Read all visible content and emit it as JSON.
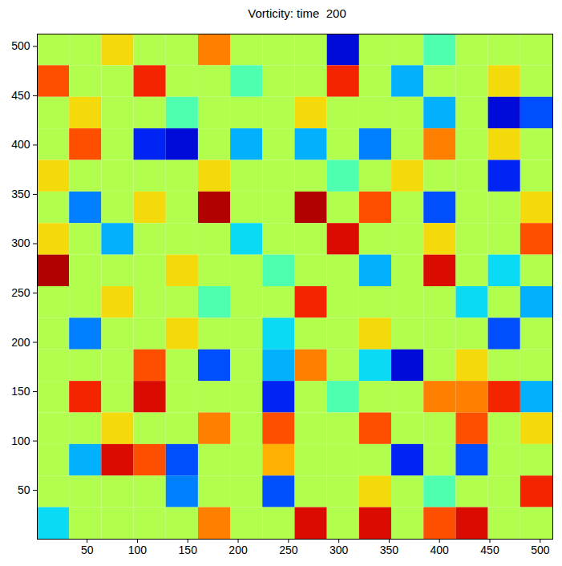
{
  "chart_data": {
    "type": "heatmap",
    "title": "Vorticity: time  200",
    "xlim": [
      0.5,
      512.5
    ],
    "ylim": [
      0.5,
      512.5
    ],
    "xticks": [
      50,
      100,
      150,
      200,
      250,
      300,
      350,
      400,
      450,
      500
    ],
    "yticks": [
      50,
      100,
      150,
      200,
      250,
      300,
      350,
      400,
      450,
      500
    ],
    "x_edges": [
      0.5,
      32.5,
      64.5,
      96.5,
      128.5,
      160.5,
      192.5,
      224.5,
      256.5,
      288.5,
      320.5,
      352.5,
      384.5,
      416.5,
      448.5,
      480.5,
      512.5
    ],
    "y_edges": [
      512.5,
      480.5,
      448.5,
      416.5,
      384.5,
      352.5,
      320.5,
      288.5,
      256.5,
      224.5,
      192.5,
      160.5,
      128.5,
      96.5,
      64.5,
      32.5,
      0.5
    ],
    "color_range": [
      -1,
      1
    ],
    "cells": [
      [
        0.1,
        0.1,
        0.3,
        0.1,
        0.1,
        0.5,
        0.1,
        0.1,
        0.1,
        -0.8,
        0.1,
        0.1,
        -0.1,
        0.1,
        0.1,
        0.1
      ],
      [
        0.6,
        0.1,
        0.1,
        0.7,
        0.1,
        0.1,
        -0.1,
        0.1,
        0.1,
        0.7,
        0.1,
        -0.4,
        0.1,
        0.1,
        0.3,
        0.1
      ],
      [
        0.1,
        0.3,
        0.1,
        0.1,
        -0.1,
        0.1,
        0.1,
        0.1,
        0.3,
        0.1,
        0.1,
        0.1,
        -0.4,
        0.1,
        -0.8,
        -0.6
      ],
      [
        0.1,
        0.6,
        0.1,
        -0.7,
        -0.8,
        0.1,
        -0.4,
        0.1,
        -0.4,
        0.1,
        -0.5,
        0.1,
        0.5,
        0.1,
        0.3,
        0.1
      ],
      [
        0.3,
        0.1,
        0.1,
        0.1,
        0.1,
        0.3,
        0.1,
        0.1,
        0.1,
        -0.1,
        0.1,
        0.3,
        0.1,
        0.1,
        -0.7,
        0.1
      ],
      [
        0.1,
        -0.5,
        0.1,
        0.3,
        0.1,
        0.9,
        0.1,
        0.1,
        0.9,
        0.1,
        0.6,
        0.1,
        -0.6,
        0.1,
        0.1,
        0.3
      ],
      [
        0.3,
        0.1,
        -0.4,
        0.1,
        0.1,
        0.1,
        -0.3,
        0.1,
        0.1,
        0.8,
        0.1,
        0.1,
        0.3,
        0.1,
        0.1,
        0.6
      ],
      [
        0.9,
        0.1,
        0.1,
        0.1,
        0.3,
        0.1,
        0.1,
        -0.1,
        0.1,
        0.1,
        -0.4,
        0.1,
        0.8,
        0.1,
        -0.3,
        0.1
      ],
      [
        0.1,
        0.1,
        0.3,
        0.1,
        0.1,
        -0.1,
        0.1,
        0.1,
        0.7,
        0.1,
        0.1,
        0.1,
        0.1,
        -0.3,
        0.1,
        -0.4
      ],
      [
        0.1,
        -0.5,
        0.1,
        0.1,
        0.3,
        0.1,
        0.1,
        -0.3,
        0.1,
        0.1,
        0.3,
        0.1,
        0.1,
        0.1,
        -0.6,
        0.1
      ],
      [
        0.1,
        0.1,
        0.1,
        0.6,
        0.1,
        -0.6,
        0.1,
        -0.4,
        0.5,
        0.1,
        -0.3,
        -0.8,
        0.1,
        0.3,
        0.1,
        0.1
      ],
      [
        0.1,
        0.7,
        0.1,
        0.8,
        0.1,
        0.1,
        0.1,
        -0.7,
        0.1,
        -0.1,
        0.1,
        0.1,
        0.5,
        0.5,
        0.7,
        -0.4
      ],
      [
        0.1,
        0.1,
        0.3,
        0.1,
        0.1,
        0.5,
        0.1,
        0.6,
        0.1,
        0.1,
        0.6,
        0.1,
        0.1,
        0.6,
        0.1,
        0.3
      ],
      [
        0.1,
        -0.4,
        0.8,
        0.6,
        -0.6,
        0.1,
        0.1,
        0.4,
        0.1,
        0.1,
        0.1,
        -0.7,
        0.1,
        -0.6,
        0.1,
        0.1
      ],
      [
        0.1,
        0.1,
        0.1,
        0.1,
        -0.5,
        0.1,
        0.1,
        -0.6,
        0.1,
        0.1,
        0.3,
        0.1,
        -0.1,
        0.1,
        0.1,
        0.7
      ],
      [
        -0.3,
        0.1,
        0.1,
        0.1,
        0.1,
        0.5,
        0.1,
        0.1,
        0.8,
        0.1,
        0.8,
        0.1,
        0.6,
        0.8,
        0.1,
        0.1
      ]
    ]
  }
}
